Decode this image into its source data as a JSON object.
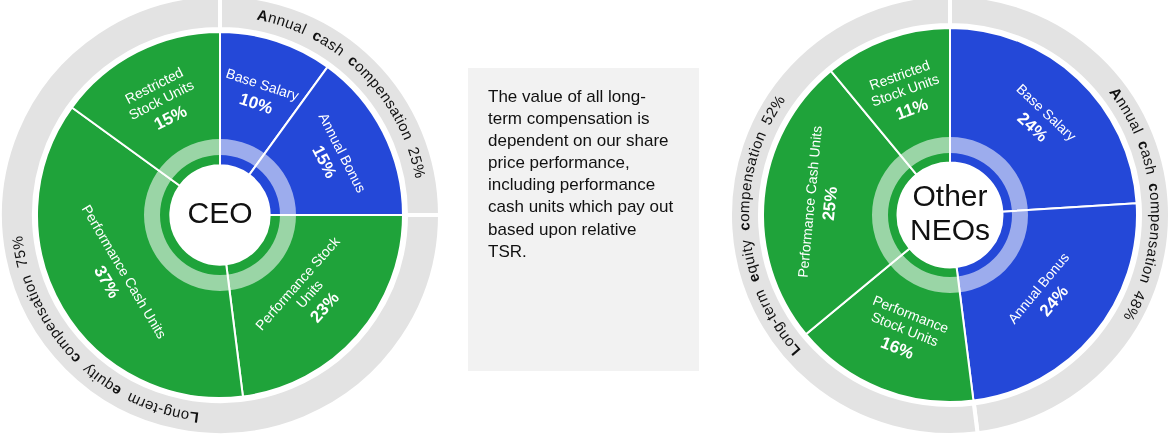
{
  "chart_data": [
    {
      "type": "donut",
      "title": "CEO",
      "categories": [
        "Base Salary",
        "Annual Bonus",
        "Performance Stock Units",
        "Performance Cash Units",
        "Restricted Stock Units"
      ],
      "values": [
        10,
        15,
        23,
        37,
        15
      ],
      "value_labels": [
        "10%",
        "15%",
        "23%",
        "37%",
        "15%"
      ],
      "colors": [
        "#2448d8",
        "#2448d8",
        "#1fa33a",
        "#1fa33a",
        "#1fa33a"
      ]
    },
    {
      "type": "donut",
      "categories": [
        "Annual cash compensation",
        "Long-term equity compensation"
      ],
      "values": [
        25,
        75
      ],
      "value_labels": [
        "25%",
        "75%"
      ],
      "colors": [
        "#e3e3e3",
        "#e3e3e3"
      ]
    },
    {
      "type": "other",
      "annotations": [
        "The value of all long-term compensation is dependent on our share price performance, including performance cash units which pay out based upon relative TSR."
      ]
    },
    {
      "type": "donut",
      "title": "Other NEOs",
      "categories": [
        "Base Salary",
        "Annual Bonus",
        "Performance Stock Units",
        "Performance Cash Units",
        "Restricted Stock Units"
      ],
      "values": [
        24,
        24,
        16,
        25,
        11
      ],
      "value_labels": [
        "24%",
        "24%",
        "16%",
        "25%",
        "11%"
      ],
      "colors": [
        "#2448d8",
        "#2448d8",
        "#1fa33a",
        "#1fa33a",
        "#1fa33a"
      ]
    },
    {
      "type": "donut",
      "categories": [
        "Annual cash compensation",
        "Long-term equity compensation"
      ],
      "values": [
        48,
        52
      ],
      "value_labels": [
        "48%",
        "52%"
      ],
      "colors": [
        "#e3e3e3",
        "#e3e3e3"
      ]
    }
  ]
}
